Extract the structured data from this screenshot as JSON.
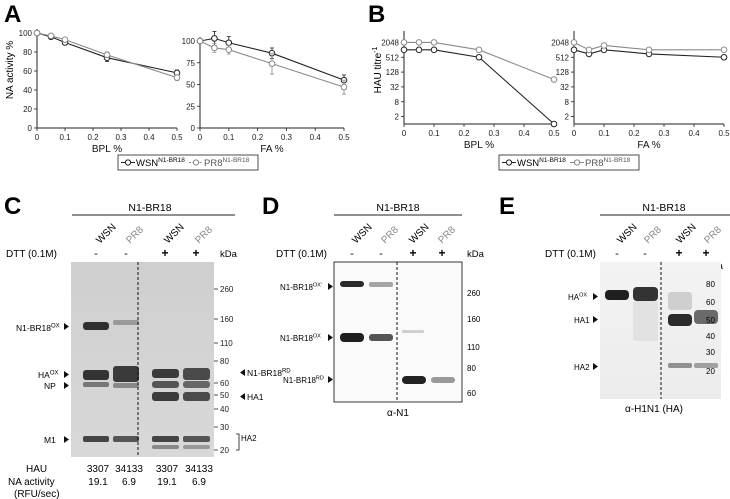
{
  "panels": {
    "A": {
      "letter": "A",
      "ylabel": "NA activity %",
      "legend": {
        "wsn_base": "WSN",
        "wsn_sup": "N1-BR18",
        "pr8_base": "PR8",
        "pr8_sup": "N1-BR18"
      },
      "left_xlabel": "BPL %",
      "right_xlabel": "FA %"
    },
    "B": {
      "letter": "B",
      "ylabel_base": "HAU titre",
      "ylabel_sup": "-1",
      "legend": {
        "wsn_base": "WSN",
        "wsn_sup": "N1-BR18",
        "pr8_base": "PR8",
        "pr8_sup": "N1-BR18"
      },
      "left_xlabel": "BPL %",
      "right_xlabel": "FA %"
    },
    "C": {
      "letter": "C",
      "header": "N1-BR18",
      "lanes": [
        "WSN",
        "PR8",
        "WSN",
        "PR8"
      ],
      "dtt_label": "DTT (0.1M)",
      "dtt_signs": [
        "-",
        "-",
        "+",
        "+"
      ],
      "kda": "kDa",
      "ladder": [
        "260",
        "160",
        "110",
        "80",
        "60",
        "50",
        "40",
        "30",
        "20"
      ],
      "left_labels": [
        {
          "base": "N1-BR18",
          "sup": "OX"
        },
        {
          "base": "HA",
          "sup": "OX"
        },
        {
          "base": "NP",
          "sup": ""
        },
        {
          "base": "M1",
          "sup": ""
        }
      ],
      "right_labels": [
        {
          "base": "N1-BR18",
          "sup": "RD"
        },
        {
          "base": "HA1",
          "sup": ""
        },
        {
          "base": "HA2",
          "sup": ""
        }
      ],
      "table": {
        "hau_label": "HAU",
        "hau_values": [
          "3307",
          "34133",
          "3307",
          "34133"
        ],
        "na_label": "NA activity",
        "na_unit": "(RFU/sec)",
        "na_values": [
          "19.1",
          "6.9",
          "19.1",
          "6.9"
        ]
      }
    },
    "D": {
      "letter": "D",
      "header": "N1-BR18",
      "lanes": [
        "WSN",
        "PR8",
        "WSN",
        "PR8"
      ],
      "dtt_label": "DTT (0.1M)",
      "dtt_signs": [
        "-",
        "-",
        "+",
        "+"
      ],
      "kda": "kDa",
      "ladder": [
        "260",
        "160",
        "110",
        "80",
        "60"
      ],
      "left_labels": [
        {
          "base": "N1-BR18",
          "sup": "OX'"
        },
        {
          "base": "N1-BR18",
          "sup": "OX"
        },
        {
          "base": "N1-BR18",
          "sup": "RD"
        }
      ],
      "antibody": "α-N1"
    },
    "E": {
      "letter": "E",
      "header": "N1-BR18",
      "lanes": [
        "WSN",
        "PR8",
        "WSN",
        "PR8"
      ],
      "dtt_label": "DTT (0.1M)",
      "dtt_signs": [
        "-",
        "-",
        "+",
        "+"
      ],
      "kda": "kDa",
      "ladder": [
        "80",
        "60",
        "50",
        "40",
        "30",
        "20"
      ],
      "left_labels": [
        {
          "base": "HA",
          "sup": "OX"
        },
        {
          "base": "HA1",
          "sup": ""
        },
        {
          "base": "HA2",
          "sup": ""
        }
      ],
      "antibody": "α-H1N1 (HA)"
    }
  },
  "chart_data": [
    {
      "type": "line",
      "panel": "A",
      "xlabel": "BPL %",
      "ylabel": "NA activity %",
      "xlim": [
        0,
        0.5
      ],
      "ylim": [
        0,
        100
      ],
      "xticks": [
        "0",
        "0.1",
        "0.2",
        "0.3",
        "0.4",
        "0.5"
      ],
      "yticks": [
        "0",
        "20",
        "40",
        "60",
        "80",
        "100"
      ],
      "x": [
        0,
        0.05,
        0.1,
        0.25,
        0.5
      ],
      "series": [
        {
          "name": "WSN N1-BR18",
          "values": [
            100,
            96,
            90,
            74,
            58
          ],
          "err": [
            1,
            2,
            2,
            4,
            3
          ]
        },
        {
          "name": "PR8 N1-BR18",
          "values": [
            100,
            97,
            93,
            77,
            53
          ],
          "err": [
            1,
            2,
            2,
            3,
            3
          ]
        }
      ]
    },
    {
      "type": "line",
      "panel": "A",
      "xlabel": "FA %",
      "ylabel": "",
      "xlim": [
        0,
        0.5
      ],
      "ylim": [
        0,
        100
      ],
      "xticks": [
        "0",
        "0.1",
        "0.2",
        "0.3",
        "0.4",
        "0.5"
      ],
      "yticks": [
        "0",
        "25",
        "50",
        "75",
        "100"
      ],
      "x": [
        0,
        0.05,
        0.1,
        0.25,
        0.5
      ],
      "series": [
        {
          "name": "WSN N1-BR18",
          "values": [
            100,
            103,
            98,
            86,
            55
          ],
          "err": [
            2,
            8,
            7,
            6,
            6
          ]
        },
        {
          "name": "PR8 N1-BR18",
          "values": [
            100,
            92,
            90,
            74,
            47
          ],
          "err": [
            2,
            5,
            5,
            12,
            8
          ]
        }
      ]
    },
    {
      "type": "line",
      "panel": "B",
      "scale": "log2",
      "xlabel": "BPL %",
      "ylabel": "HAU titre-1",
      "xlim": [
        0,
        0.5
      ],
      "ylim": [
        1,
        4096
      ],
      "xticks": [
        "0",
        "0.1",
        "0.2",
        "0.3",
        "0.4",
        "0.5"
      ],
      "yticks": [
        "2",
        "8",
        "32",
        "128",
        "512",
        "2048"
      ],
      "x": [
        0,
        0.05,
        0.1,
        0.25,
        0.5
      ],
      "series": [
        {
          "name": "WSN N1-BR18",
          "values": [
            1024,
            1024,
            1024,
            512,
            1
          ]
        },
        {
          "name": "PR8 N1-BR18",
          "values": [
            2048,
            2048,
            2048,
            1024,
            64
          ]
        }
      ]
    },
    {
      "type": "line",
      "panel": "B",
      "scale": "log2",
      "xlabel": "FA %",
      "ylabel": "",
      "xlim": [
        0,
        0.5
      ],
      "ylim": [
        1,
        4096
      ],
      "xticks": [
        "0",
        "0.1",
        "0.2",
        "0.3",
        "0.4",
        "0.5"
      ],
      "yticks": [
        "2",
        "8",
        "32",
        "128",
        "512",
        "2048"
      ],
      "x": [
        0,
        0.05,
        0.1,
        0.25,
        0.5
      ],
      "series": [
        {
          "name": "WSN N1-BR18",
          "values": [
            1024,
            700,
            1024,
            700,
            512
          ]
        },
        {
          "name": "PR8 N1-BR18",
          "values": [
            2048,
            1024,
            1536,
            1024,
            1024
          ]
        }
      ]
    }
  ]
}
